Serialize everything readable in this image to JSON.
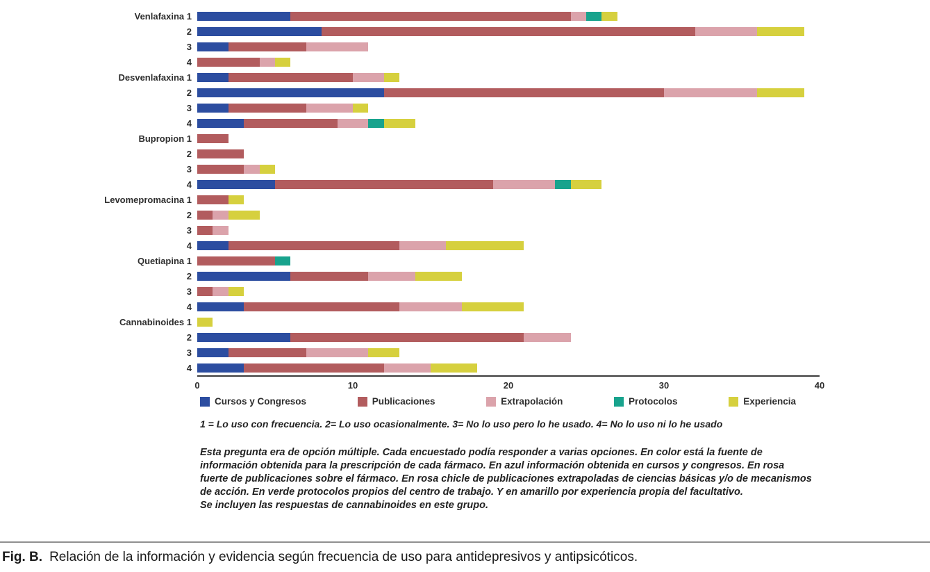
{
  "figure": {
    "caption_label": "Fig. B.",
    "caption_text": "Relación de la información y evidencia según frecuencia de uso para antidepresivos y antipsicóticos."
  },
  "notes": {
    "scale_note": "1 = Lo uso con frecuencia. 2= Lo uso ocasionalmente. 3= No lo uso pero lo he usado. 4= No lo uso ni lo he usado",
    "paragraph": "Esta pregunta era de opción múltiple. Cada encuestado podía responder a varias opciones. En color está la fuente de información obtenida para la prescripción de cada fármaco. En azul información obtenida en cursos y congresos. En rosa fuerte de publicaciones sobre el fármaco. En rosa chicle de publicaciones extrapoladas de ciencias básicas y/o de mecanismos de acción. En verde protocolos propios del centro de trabajo. Y en amarillo por experiencia propia del facultativo.",
    "paragraph2": "Se incluyen las respuestas de cannabinoides en este grupo."
  },
  "chart_data": {
    "type": "bar",
    "orientation": "horizontal",
    "stacked": true,
    "grid": false,
    "legend_position": "bottom",
    "xlim": [
      0,
      40
    ],
    "xticks": [
      0,
      10,
      20,
      30,
      40
    ],
    "series_names": [
      "Cursos y Congresos",
      "Publicaciones",
      "Extrapolación",
      "Protocolos",
      "Experiencia"
    ],
    "series_colors": [
      "#2c4da0",
      "#b25c5e",
      "#dba3ab",
      "#18a38d",
      "#d6d03e"
    ],
    "groups": [
      {
        "label": "Venlafaxina",
        "rows": [
          {
            "tick": "1",
            "values": [
              6,
              18,
              1,
              1,
              1
            ]
          },
          {
            "tick": "2",
            "values": [
              8,
              24,
              4,
              0,
              3
            ]
          },
          {
            "tick": "3",
            "values": [
              2,
              5,
              4,
              0,
              0
            ]
          },
          {
            "tick": "4",
            "values": [
              0,
              4,
              1,
              0,
              1
            ]
          }
        ]
      },
      {
        "label": "Desvenlafaxina",
        "rows": [
          {
            "tick": "1",
            "values": [
              2,
              8,
              2,
              0,
              1
            ]
          },
          {
            "tick": "2",
            "values": [
              12,
              18,
              6,
              0,
              3
            ]
          },
          {
            "tick": "3",
            "values": [
              2,
              5,
              3,
              0,
              1
            ]
          },
          {
            "tick": "4",
            "values": [
              3,
              6,
              2,
              1,
              2
            ]
          }
        ]
      },
      {
        "label": "Bupropion",
        "rows": [
          {
            "tick": "1",
            "values": [
              0,
              2,
              0,
              0,
              0
            ]
          },
          {
            "tick": "2",
            "values": [
              0,
              3,
              0,
              0,
              0
            ]
          },
          {
            "tick": "3",
            "values": [
              0,
              3,
              1,
              0,
              1
            ]
          },
          {
            "tick": "4",
            "values": [
              5,
              14,
              4,
              1,
              2
            ]
          }
        ]
      },
      {
        "label": "Levomepromacina",
        "rows": [
          {
            "tick": "1",
            "values": [
              0,
              2,
              0,
              0,
              1
            ]
          },
          {
            "tick": "2",
            "values": [
              0,
              1,
              1,
              0,
              2
            ]
          },
          {
            "tick": "3",
            "values": [
              0,
              1,
              1,
              0,
              0
            ]
          },
          {
            "tick": "4",
            "values": [
              2,
              11,
              3,
              0,
              5
            ]
          }
        ]
      },
      {
        "label": "Quetiapina",
        "rows": [
          {
            "tick": "1",
            "values": [
              0,
              5,
              0,
              1,
              0
            ]
          },
          {
            "tick": "2",
            "values": [
              6,
              5,
              3,
              0,
              3
            ]
          },
          {
            "tick": "3",
            "values": [
              0,
              1,
              1,
              0,
              1
            ]
          },
          {
            "tick": "4",
            "values": [
              3,
              10,
              4,
              0,
              4
            ]
          }
        ]
      },
      {
        "label": "Cannabinoides",
        "rows": [
          {
            "tick": "1",
            "values": [
              0,
              0,
              0,
              0,
              1
            ]
          },
          {
            "tick": "2",
            "values": [
              6,
              15,
              3,
              0,
              0
            ]
          },
          {
            "tick": "3",
            "values": [
              2,
              5,
              4,
              0,
              2
            ]
          },
          {
            "tick": "4",
            "values": [
              3,
              9,
              3,
              0,
              3
            ]
          }
        ]
      }
    ]
  }
}
